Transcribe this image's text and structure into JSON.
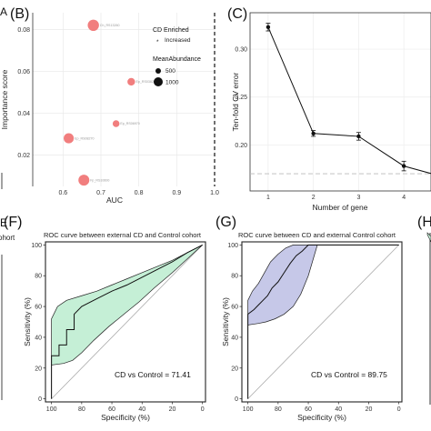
{
  "panels": {
    "A": {
      "label": "A"
    },
    "B": {
      "label": "(B)"
    },
    "C": {
      "label": "(C)"
    },
    "E": {
      "label": "E"
    },
    "F": {
      "label": "(F)"
    },
    "G": {
      "label": "(G)"
    },
    "H": {
      "label": "(H"
    }
  },
  "fragments": {
    "E_cohort": "ohort"
  },
  "colors": {
    "bubble": "#f07070",
    "roc_f_fill": "#c5efd6",
    "roc_g_fill": "#c6c8e8",
    "line": "#111111",
    "dashed": "#444444",
    "grey_dash": "#bbbbbb"
  },
  "chart_data": [
    {
      "id": "B",
      "type": "scatter",
      "xlabel": "AUC",
      "ylabel": "Importance score",
      "xlim": [
        0.52,
        1.0
      ],
      "ylim": [
        0.005,
        0.088
      ],
      "xticks": [
        "0.6",
        "0.7",
        "0.8",
        "0.9",
        "1.0"
      ],
      "yticks": [
        "0.02",
        "0.04",
        "0.06",
        "0.08"
      ],
      "vline": 1.0,
      "grid": true,
      "points": [
        {
          "label": "Ch_RS13260",
          "x": 0.68,
          "y": 0.082,
          "abundance": 1000
        },
        {
          "label": "Ep_RS03825",
          "x": 0.78,
          "y": 0.055,
          "abundance": 250
        },
        {
          "label": "Ep_RS06970",
          "x": 0.74,
          "y": 0.035,
          "abundance": 150
        },
        {
          "label": "Ep_RS08270",
          "x": 0.615,
          "y": 0.028,
          "abundance": 700
        },
        {
          "label": "Fp_RS10600",
          "x": 0.655,
          "y": 0.008,
          "abundance": 900
        }
      ],
      "legend": {
        "title1": "CD Enriched",
        "item": "Increased",
        "title2": "MeanAbundance",
        "size_labels": [
          "500",
          "1000"
        ]
      }
    },
    {
      "id": "C",
      "type": "line",
      "xlabel": "Number of gene",
      "ylabel": "Ten-fold CV error",
      "xlim": [
        0.6,
        4.6
      ],
      "ylim": [
        0.152,
        0.338
      ],
      "xticks": [
        "1",
        "2",
        "3",
        "4"
      ],
      "yticks": [
        "0.20",
        "0.25",
        "0.30"
      ],
      "hline": 0.17,
      "grid": true,
      "x": [
        1,
        2,
        3,
        4,
        5
      ],
      "y": [
        0.323,
        0.212,
        0.209,
        0.178,
        0.165
      ],
      "err": [
        0.004,
        0.003,
        0.004,
        0.005,
        0.005
      ]
    },
    {
      "id": "F",
      "type": "line",
      "title": "ROC curve between external CD and  Control cohort",
      "xlabel": "Specificity (%)",
      "ylabel": "Sensitivity (%)",
      "xlim": [
        104,
        -2
      ],
      "ylim": [
        -2,
        102
      ],
      "xticks": [
        "100",
        "80",
        "60",
        "40",
        "20",
        "0"
      ],
      "yticks": [
        "0",
        "20",
        "40",
        "60",
        "80",
        "100"
      ],
      "annotation": "CD vs Control = 71.41",
      "roc": {
        "spec": [
          100,
          100,
          95,
          95,
          90,
          90,
          85,
          85,
          80,
          70,
          60,
          50,
          40,
          30,
          20,
          10,
          0
        ],
        "sens": [
          0,
          28,
          28,
          35,
          35,
          45,
          45,
          55,
          60,
          65,
          70,
          74,
          79,
          84,
          89,
          95,
          100
        ]
      },
      "ci_upper": {
        "spec": [
          100,
          100,
          96,
          90,
          80,
          70,
          60,
          50,
          40,
          30,
          20,
          10,
          0
        ],
        "sens": [
          0,
          52,
          60,
          64,
          67,
          70,
          74,
          78,
          82,
          86,
          90,
          95,
          100
        ]
      },
      "ci_lower": {
        "spec": [
          100,
          100,
          92,
          86,
          80,
          72,
          62,
          52,
          42,
          32,
          20,
          10,
          0
        ],
        "sens": [
          0,
          22,
          23,
          25,
          30,
          38,
          47,
          55,
          63,
          72,
          82,
          91,
          100
        ]
      }
    },
    {
      "id": "G",
      "type": "line",
      "title": "ROC curve between CD and external Control cohort",
      "xlabel": "Specificity (%)",
      "ylabel": "Sensitivity (%)",
      "xlim": [
        104,
        -2
      ],
      "ylim": [
        -2,
        102
      ],
      "xticks": [
        "100",
        "80",
        "60",
        "40",
        "20",
        "0"
      ],
      "yticks": [
        "0",
        "20",
        "40",
        "60",
        "80",
        "100"
      ],
      "annotation": "CD vs Control = 89.75",
      "roc": {
        "spec": [
          100,
          100,
          96,
          93,
          90,
          87,
          84,
          80,
          76,
          72,
          68,
          64,
          60,
          0
        ],
        "sens": [
          0,
          55,
          58,
          61,
          64,
          67,
          72,
          76,
          82,
          88,
          93,
          96,
          100,
          100
        ]
      },
      "ci_upper": {
        "spec": [
          100,
          100,
          97,
          93,
          89,
          85,
          80,
          75,
          70,
          0
        ],
        "sens": [
          0,
          64,
          70,
          75,
          82,
          89,
          94,
          98,
          100,
          100
        ]
      },
      "ci_lower": {
        "spec": [
          100,
          100,
          93,
          88,
          82,
          76,
          70,
          65,
          60,
          54,
          0
        ],
        "sens": [
          0,
          48,
          49,
          50,
          52,
          55,
          60,
          68,
          80,
          100,
          100
        ]
      }
    }
  ]
}
